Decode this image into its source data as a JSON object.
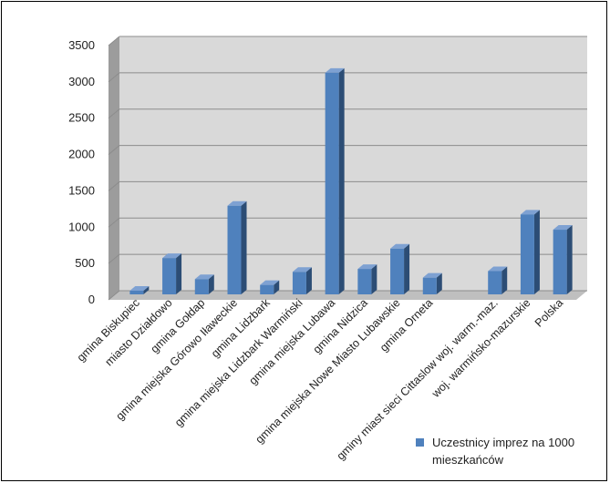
{
  "chart_data": {
    "type": "bar",
    "title": "",
    "xlabel": "",
    "ylabel": "",
    "ylim": [
      0,
      3500
    ],
    "yticks": [
      0,
      500,
      1000,
      1500,
      2000,
      2500,
      3000,
      3500
    ],
    "grid": true,
    "legend_position": "bottom-right",
    "categories": [
      "gmina Biskupiec",
      "miasto Działdowo",
      "gmina Gołdap",
      "gmina miejska Górowo Iławeckie",
      "gmina Lidzbark",
      "gmina miejska Lidzbark Warmiński",
      "gmina miejska Lubawa",
      "gmina Nidzica",
      "gmina miejska Nowe Miasto Lubawskie",
      "gmina Orneta",
      "",
      "gminy miast sieci Cittaslow woj. warm.-maz.",
      "woj. warmińsko-mazurskie",
      "Polska"
    ],
    "series": [
      {
        "name": "Uczestnicy imprez na 1000 mieszkańców",
        "values": [
          50,
          500,
          210,
          1220,
          130,
          310,
          3050,
          350,
          630,
          230,
          null,
          320,
          1100,
          890
        ]
      }
    ],
    "colors": {
      "bar_front": "#4f81bd",
      "bar_side": "#2c4d75",
      "bar_top": "#7ea1d2",
      "plot_back": "#d9d9d9",
      "wall_side": "#9c9c9c",
      "floor": "#bfbfbf",
      "grid": "#8c8c8c"
    }
  }
}
